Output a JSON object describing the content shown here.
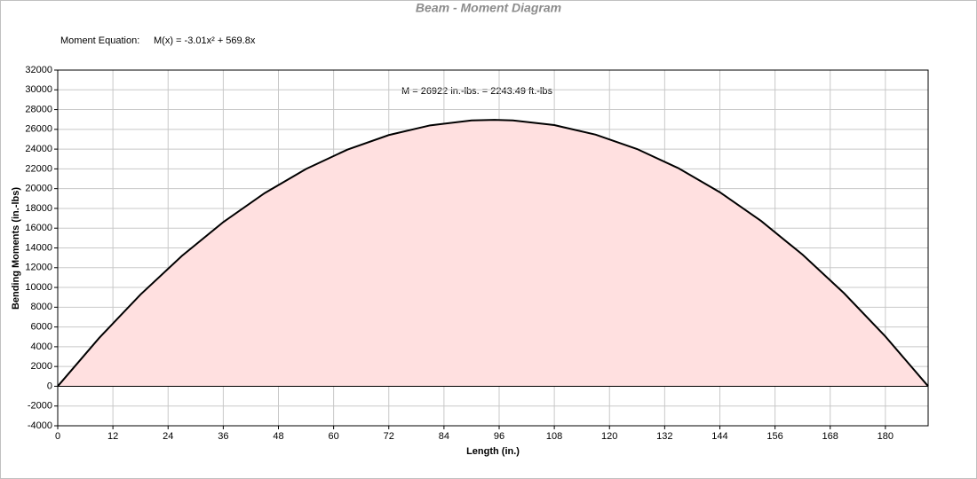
{
  "chart_data": {
    "type": "area",
    "title": "Beam - Moment Diagram",
    "equation_label": "Moment Equation:",
    "equation": "M(x) = -3.01x² + 569.8x",
    "annotation": "M = 26922 in.-lbs. = 2243.49 ft.-lbs",
    "x_label": "Length (in.)",
    "y_label": "Bending Moments (in.-lbs)",
    "x": [
      0,
      9,
      18,
      27,
      36,
      45,
      54,
      63,
      72,
      81,
      90,
      95,
      99,
      108,
      117,
      126,
      135,
      144,
      153,
      162,
      171,
      180,
      189.3
    ],
    "series": [
      {
        "color": "#000000",
        "fill": "#ffe0e0",
        "values": [
          0,
          4884,
          9281,
          13190,
          16612,
          19546,
          21992,
          23951,
          25422,
          26405,
          26901,
          26966,
          26909,
          26430,
          25463,
          24008,
          22066,
          19636,
          16718,
          13313,
          9420,
          5040,
          0
        ]
      }
    ],
    "xlim": [
      0,
      189.3
    ],
    "xticks": [
      0,
      12,
      24,
      36,
      48,
      60,
      72,
      84,
      96,
      108,
      120,
      132,
      144,
      156,
      168,
      180
    ],
    "ylim": [
      -4000,
      32000
    ],
    "yticks": [
      -4000,
      -2000,
      0,
      2000,
      4000,
      6000,
      8000,
      10000,
      12000,
      14000,
      16000,
      18000,
      20000,
      22000,
      24000,
      26000,
      28000,
      30000,
      32000
    ],
    "grid": true
  }
}
